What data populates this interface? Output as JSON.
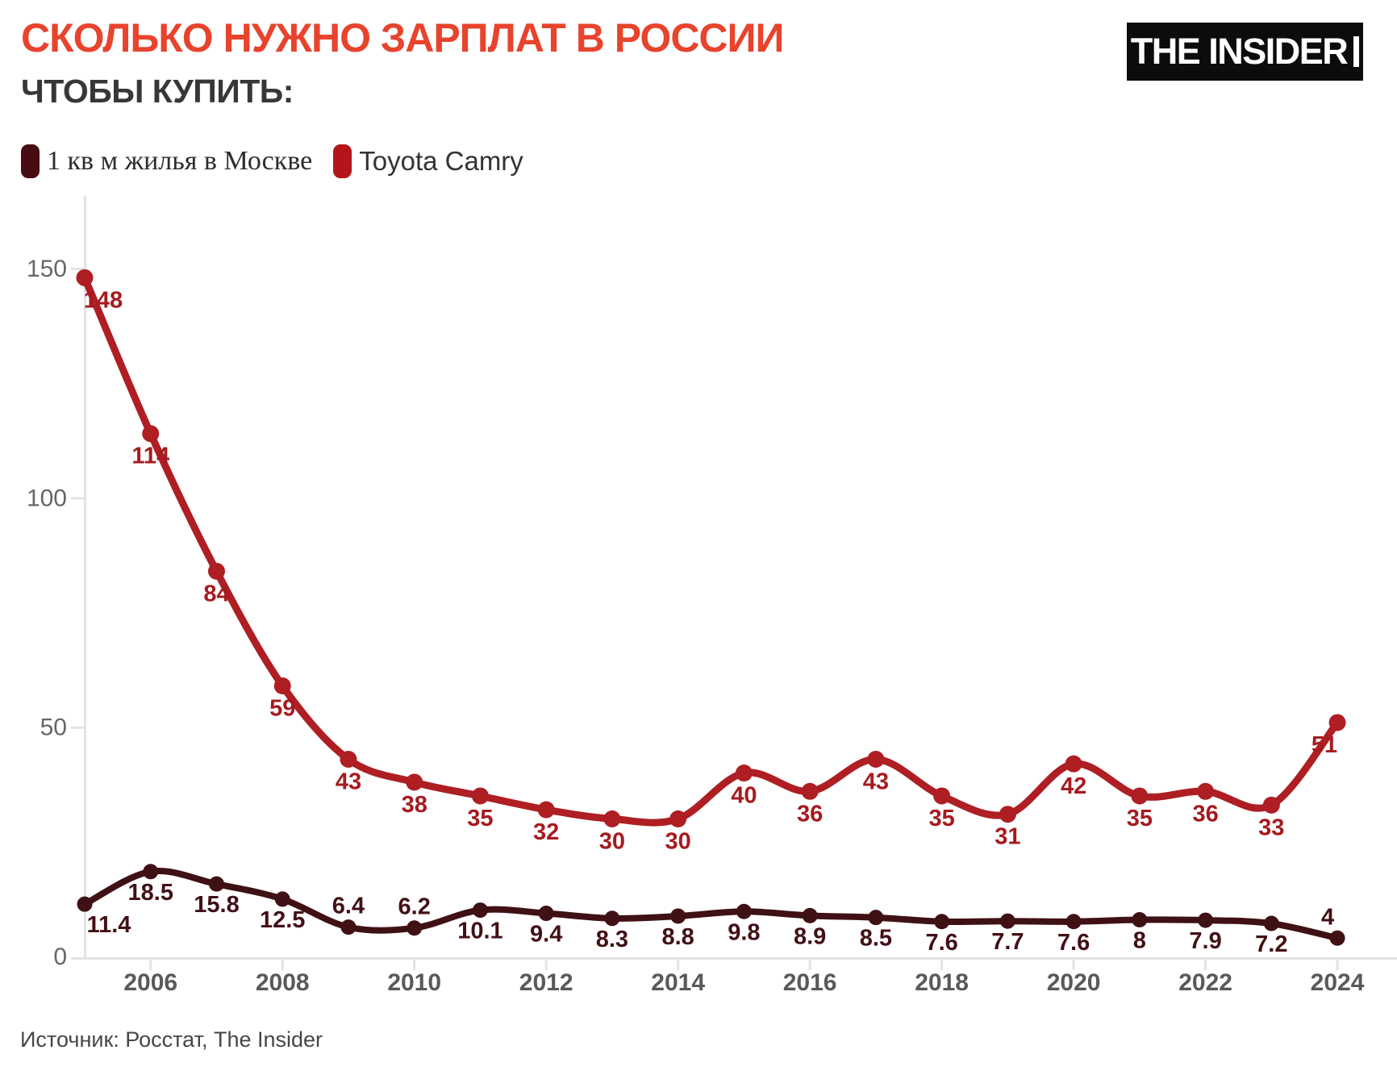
{
  "header": {
    "title": "СКОЛЬКО НУЖНО ЗАРПЛАТ В РОССИИ",
    "subtitle": "ЧТОБЫ КУПИТЬ:",
    "logo_text": "THE INSIDER"
  },
  "legend": [
    {
      "label": "1 кв м жилья в Москве",
      "color": "#470d10"
    },
    {
      "label": "Toyota Camry",
      "color": "#b2161b"
    }
  ],
  "source": "Источник: Росстат, The Insider",
  "chart_data": {
    "type": "line",
    "title": "СКОЛЬКО НУЖНО ЗАРПЛАТ В РОССИИ",
    "subtitle": "ЧТОБЫ КУПИТЬ:",
    "x": [
      2005,
      2006,
      2007,
      2008,
      2009,
      2010,
      2011,
      2012,
      2013,
      2014,
      2015,
      2016,
      2017,
      2018,
      2019,
      2020,
      2021,
      2022,
      2023,
      2024
    ],
    "x_ticks": [
      2006,
      2008,
      2010,
      2012,
      2014,
      2016,
      2018,
      2020,
      2022,
      2024
    ],
    "y_ticks": [
      0,
      50,
      100,
      150
    ],
    "ylim": [
      0,
      160
    ],
    "grid": false,
    "legend_position": "top-left",
    "axis_color": "#e3e3e3",
    "series": [
      {
        "name": "1 кв м жилья в Москве",
        "color": "#3f1114",
        "label_color": "#421015",
        "values": [
          11.4,
          18.5,
          15.8,
          12.5,
          6.4,
          6.2,
          10.1,
          9.4,
          8.3,
          8.8,
          9.8,
          8.9,
          8.5,
          7.6,
          7.7,
          7.6,
          8,
          7.9,
          7.2,
          4
        ],
        "labels_above": [
          4,
          5,
          19
        ],
        "label_dx": {
          "0": 30,
          "19": -12
        }
      },
      {
        "name": "Toyota Camry",
        "color": "#ae1e23",
        "label_color": "#a51b20",
        "values": [
          148,
          114,
          84,
          59,
          43,
          38,
          35,
          32,
          30,
          30,
          40,
          36,
          43,
          35,
          31,
          42,
          35,
          36,
          33,
          51
        ],
        "labels_above": [],
        "label_dx": {
          "0": 23,
          "19": -16
        }
      }
    ]
  }
}
